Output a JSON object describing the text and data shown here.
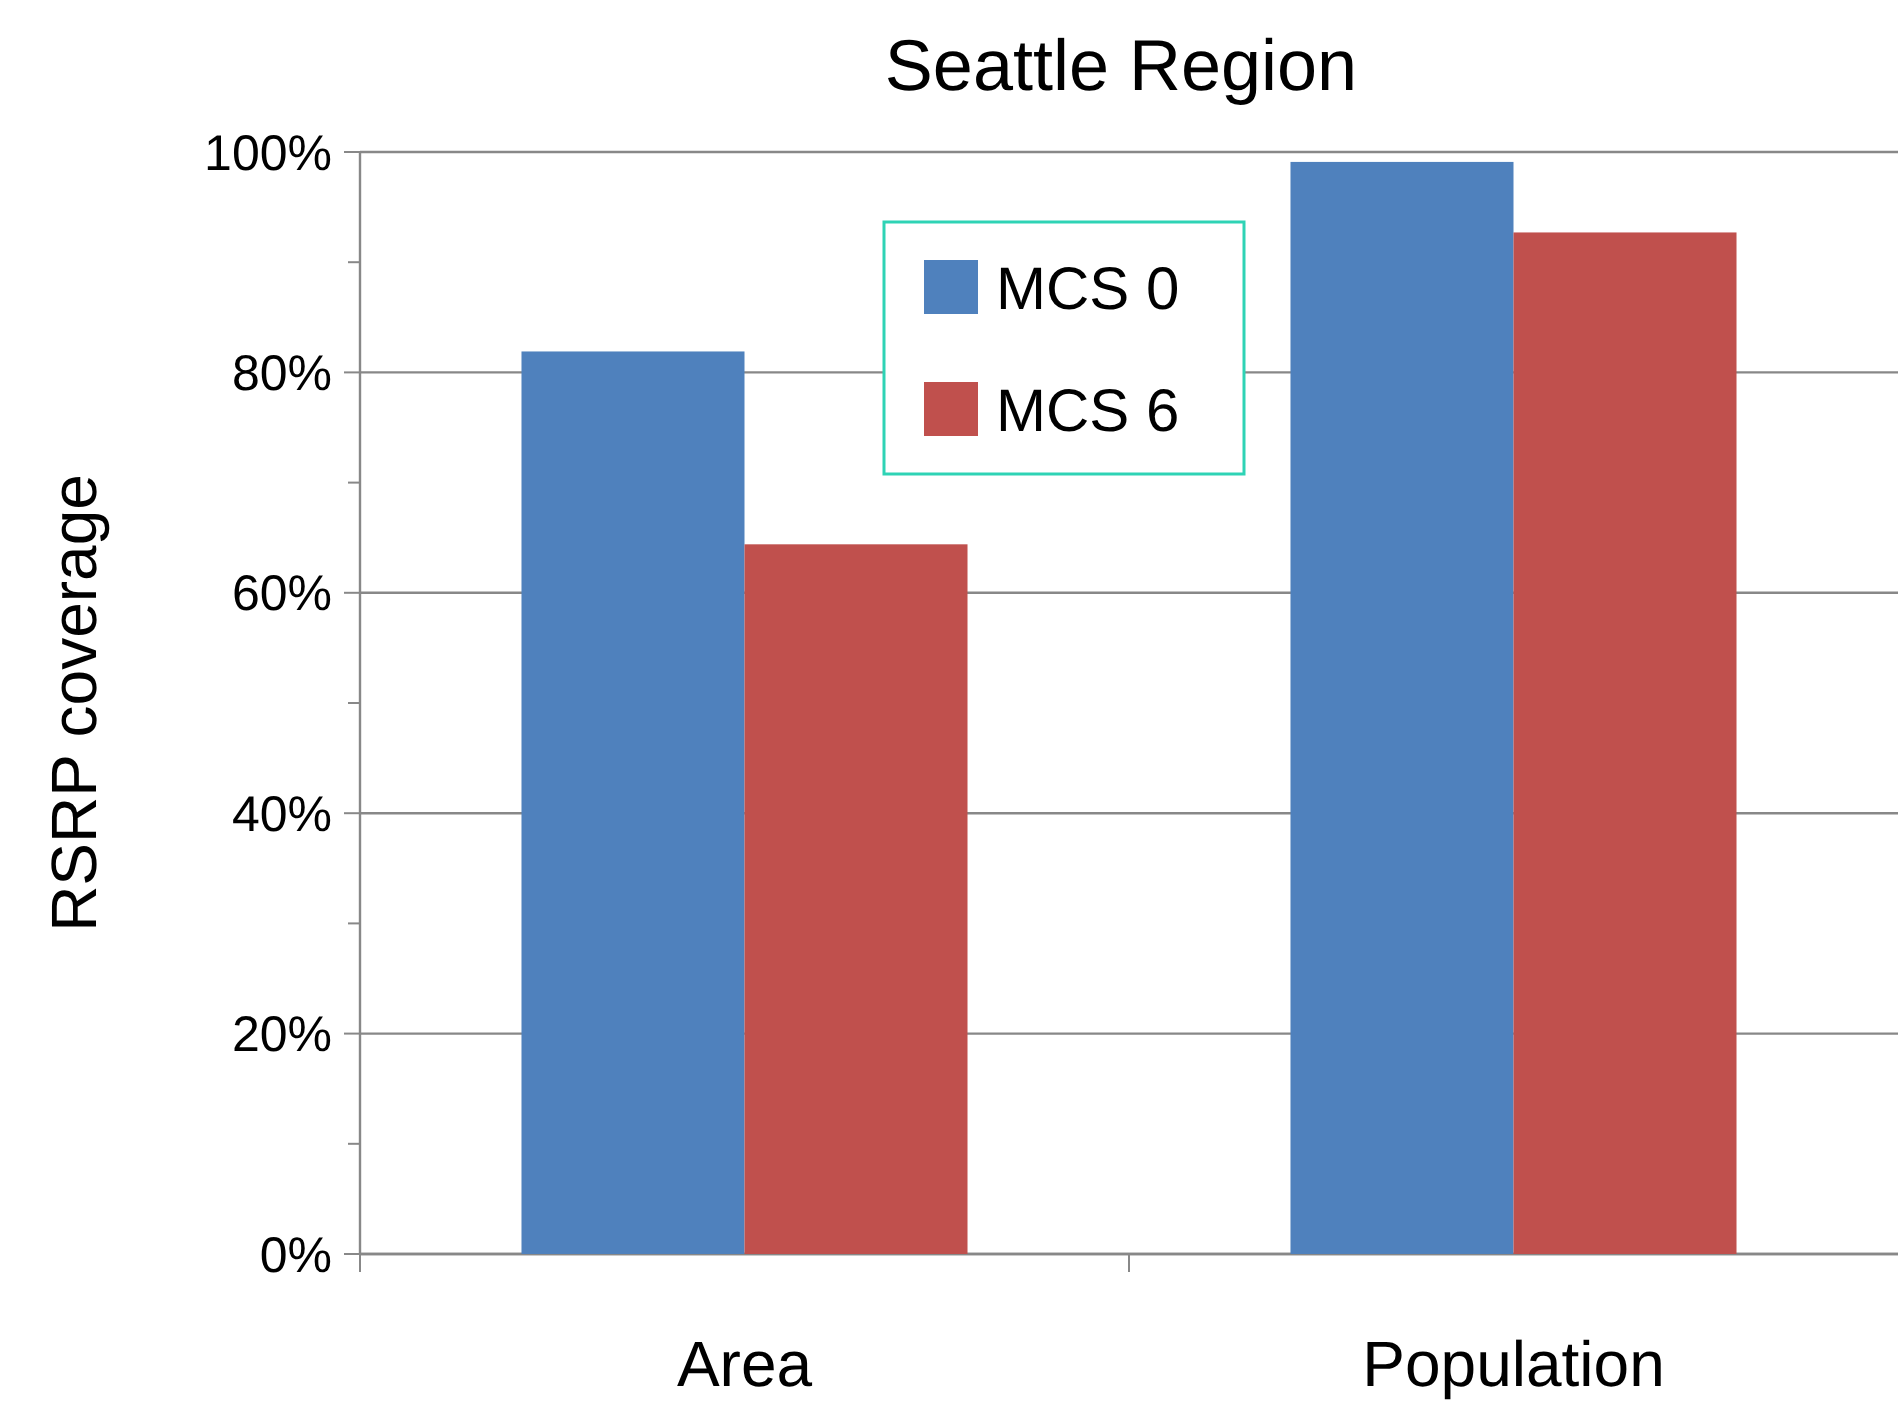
{
  "chart_data": {
    "type": "bar",
    "title": "Seattle Region",
    "ylabel": "RSRP coverage",
    "categories": [
      "Area",
      "Population"
    ],
    "series": [
      {
        "name": "MCS 0",
        "color": "#4f81bd",
        "values": [
          81.9,
          99.1
        ]
      },
      {
        "name": "MCS 6",
        "color": "#c0504d",
        "values": [
          64.4,
          92.7
        ]
      }
    ],
    "ylim": [
      0,
      100
    ],
    "yticks": [
      {
        "value": 0,
        "label": "0%"
      },
      {
        "value": 20,
        "label": "20%"
      },
      {
        "value": 40,
        "label": "40%"
      },
      {
        "value": 60,
        "label": "60%"
      },
      {
        "value": 80,
        "label": "80%"
      },
      {
        "value": 100,
        "label": "100%"
      }
    ],
    "grid": "y",
    "legend": "top"
  }
}
